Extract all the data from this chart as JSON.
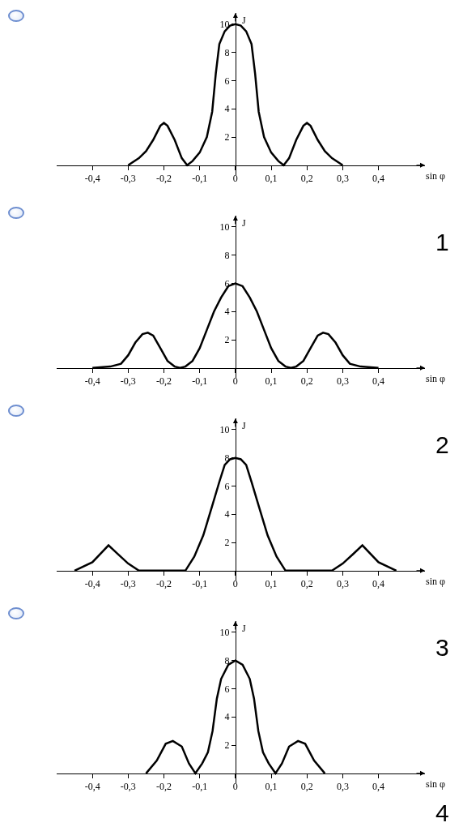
{
  "chart_data": [
    {
      "type": "line",
      "xlabel": "sin φ",
      "ylabel": "J",
      "xlim": [
        -0.5,
        0.53
      ],
      "ylim": [
        -0.7,
        10.8
      ],
      "xticks": [
        {
          "value": -0.4,
          "label": "-0,4"
        },
        {
          "value": -0.3,
          "label": "-0,3"
        },
        {
          "value": -0.2,
          "label": "-0,2"
        },
        {
          "value": -0.1,
          "label": "-0,1"
        },
        {
          "value": 0,
          "label": "0"
        },
        {
          "value": 0.1,
          "label": "0,1"
        },
        {
          "value": 0.2,
          "label": "0,2"
        },
        {
          "value": 0.3,
          "label": "0,3"
        },
        {
          "value": 0.4,
          "label": "0,4"
        }
      ],
      "yticks": [
        2,
        4,
        6,
        8,
        10
      ],
      "series": [
        {
          "color": "#000000",
          "x": [
            -0.3,
            -0.27,
            -0.25,
            -0.23,
            -0.21,
            -0.2,
            -0.19,
            -0.17,
            -0.15,
            -0.135,
            -0.12,
            -0.1,
            -0.08,
            -0.065,
            -0.055,
            -0.045,
            -0.03,
            -0.015,
            0,
            0.015,
            0.03,
            0.045,
            0.055,
            0.065,
            0.08,
            0.1,
            0.12,
            0.135,
            0.15,
            0.17,
            0.19,
            0.2,
            0.21,
            0.23,
            0.25,
            0.27,
            0.3
          ],
          "values": [
            0,
            0.5,
            1,
            1.8,
            2.8,
            3,
            2.8,
            1.8,
            0.5,
            0,
            0.3,
            0.9,
            2,
            3.8,
            6.5,
            8.6,
            9.5,
            9.9,
            10,
            9.9,
            9.5,
            8.6,
            6.5,
            3.8,
            2,
            0.9,
            0.3,
            0,
            0.5,
            1.8,
            2.8,
            3,
            2.8,
            1.8,
            1,
            0.5,
            0
          ]
        }
      ]
    },
    {
      "type": "line",
      "xlabel": "sin φ",
      "ylabel": "J",
      "xlim": [
        -0.5,
        0.53
      ],
      "ylim": [
        -0.7,
        10.8
      ],
      "xticks": [
        {
          "value": -0.4,
          "label": "-0,4"
        },
        {
          "value": -0.3,
          "label": "-0,3"
        },
        {
          "value": -0.2,
          "label": "-0,2"
        },
        {
          "value": -0.1,
          "label": "-0,1"
        },
        {
          "value": 0,
          "label": "0"
        },
        {
          "value": 0.1,
          "label": "0,1"
        },
        {
          "value": 0.2,
          "label": "0,2"
        },
        {
          "value": 0.3,
          "label": "0,3"
        },
        {
          "value": 0.4,
          "label": "0,4"
        }
      ],
      "yticks": [
        2,
        4,
        6,
        8,
        10
      ],
      "annotations": [
        "1"
      ],
      "series": [
        {
          "color": "#000000",
          "x": [
            -0.4,
            -0.35,
            -0.32,
            -0.3,
            -0.28,
            -0.26,
            -0.245,
            -0.23,
            -0.21,
            -0.19,
            -0.17,
            -0.155,
            -0.14,
            -0.12,
            -0.1,
            -0.08,
            -0.06,
            -0.04,
            -0.02,
            0,
            0.02,
            0.04,
            0.06,
            0.08,
            0.1,
            0.12,
            0.14,
            0.155,
            0.17,
            0.19,
            0.21,
            0.23,
            0.245,
            0.26,
            0.28,
            0.3,
            0.32,
            0.35,
            0.4
          ],
          "values": [
            0,
            0.1,
            0.3,
            0.9,
            1.8,
            2.4,
            2.5,
            2.3,
            1.4,
            0.5,
            0.1,
            0,
            0.1,
            0.5,
            1.4,
            2.7,
            4,
            5,
            5.8,
            6,
            5.8,
            5,
            4,
            2.7,
            1.4,
            0.5,
            0.1,
            0,
            0.1,
            0.5,
            1.4,
            2.3,
            2.5,
            2.4,
            1.8,
            0.9,
            0.3,
            0.1,
            0
          ]
        }
      ]
    },
    {
      "type": "line",
      "xlabel": "sin φ",
      "ylabel": "J",
      "xlim": [
        -0.5,
        0.53
      ],
      "ylim": [
        -0.7,
        10.8
      ],
      "xticks": [
        {
          "value": -0.4,
          "label": "-0,4"
        },
        {
          "value": -0.3,
          "label": "-0,3"
        },
        {
          "value": -0.2,
          "label": "-0,2"
        },
        {
          "value": -0.1,
          "label": "-0,1"
        },
        {
          "value": 0,
          "label": "0"
        },
        {
          "value": 0.1,
          "label": "0,1"
        },
        {
          "value": 0.2,
          "label": "0,2"
        },
        {
          "value": 0.3,
          "label": "0,3"
        },
        {
          "value": 0.4,
          "label": "0,4"
        }
      ],
      "yticks": [
        2,
        4,
        6,
        8,
        10
      ],
      "annotations": [
        "2"
      ],
      "series": [
        {
          "color": "#000000",
          "x": [
            -0.45,
            -0.4,
            -0.355,
            -0.33,
            -0.3,
            -0.27,
            -0.14,
            -0.115,
            -0.09,
            -0.065,
            -0.045,
            -0.03,
            -0.015,
            0,
            0.015,
            0.03,
            0.045,
            0.065,
            0.09,
            0.115,
            0.14,
            0.27,
            0.3,
            0.33,
            0.355,
            0.4,
            0.45
          ],
          "values": [
            0,
            0.6,
            1.8,
            1.2,
            0.5,
            0,
            0,
            1,
            2.5,
            4.6,
            6.3,
            7.5,
            7.9,
            8,
            7.9,
            7.5,
            6.3,
            4.6,
            2.5,
            1,
            0,
            0,
            0.5,
            1.2,
            1.8,
            0.6,
            0
          ]
        }
      ]
    },
    {
      "type": "line",
      "xlabel": "sin φ",
      "ylabel": "J",
      "xlim": [
        -0.5,
        0.53
      ],
      "ylim": [
        -0.7,
        10.8
      ],
      "xticks": [
        {
          "value": -0.4,
          "label": "-0,4"
        },
        {
          "value": -0.3,
          "label": "-0,3"
        },
        {
          "value": -0.2,
          "label": "-0,2"
        },
        {
          "value": -0.1,
          "label": "-0,1"
        },
        {
          "value": 0,
          "label": "0"
        },
        {
          "value": 0.1,
          "label": "0,1"
        },
        {
          "value": 0.2,
          "label": "0,2"
        },
        {
          "value": 0.3,
          "label": "0,3"
        },
        {
          "value": 0.4,
          "label": "0,4"
        }
      ],
      "yticks": [
        2,
        4,
        6,
        8,
        10
      ],
      "annotations": [
        "3",
        "4"
      ],
      "series": [
        {
          "color": "#000000",
          "x": [
            -0.25,
            -0.22,
            -0.195,
            -0.175,
            -0.15,
            -0.13,
            -0.112,
            -0.093,
            -0.077,
            -0.064,
            -0.052,
            -0.04,
            -0.02,
            0,
            0.02,
            0.04,
            0.052,
            0.064,
            0.077,
            0.093,
            0.112,
            0.13,
            0.15,
            0.175,
            0.195,
            0.22,
            0.25
          ],
          "values": [
            0,
            0.9,
            2.1,
            2.3,
            1.9,
            0.7,
            0,
            0.7,
            1.5,
            3,
            5.3,
            6.7,
            7.7,
            8,
            7.7,
            6.7,
            5.3,
            3,
            1.5,
            0.7,
            0,
            0.7,
            1.9,
            2.3,
            2.1,
            0.9,
            0
          ]
        }
      ]
    }
  ]
}
